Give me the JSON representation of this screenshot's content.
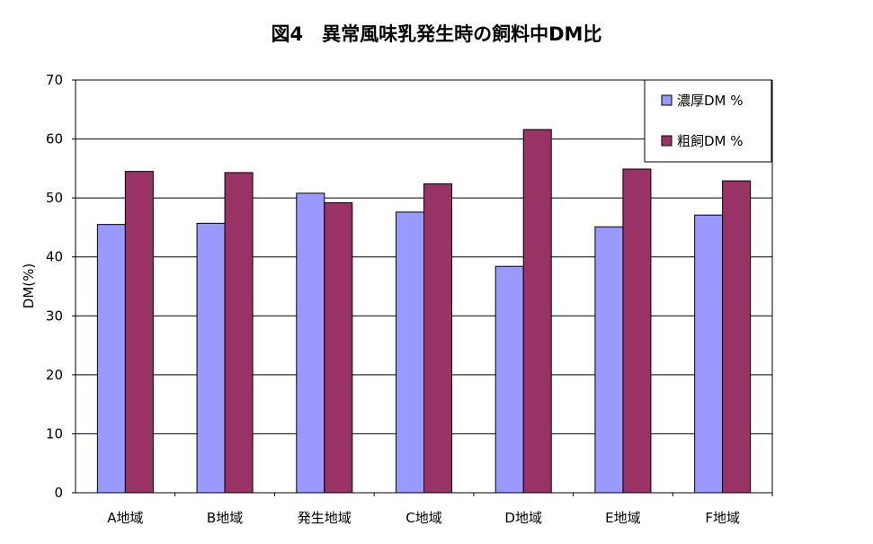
{
  "chart_data": {
    "type": "bar",
    "title": "図4　異常風味乳発生時の飼料中DM比",
    "ylabel": "DM(%)",
    "xlabel": "",
    "ylim": [
      0,
      70
    ],
    "yticks": [
      0,
      10,
      20,
      30,
      40,
      50,
      60,
      70
    ],
    "grid": true,
    "legend_position": "top-right",
    "categories": [
      "A地域",
      "B地域",
      "発生地域",
      "C地域",
      "D地域",
      "E地域",
      "F地域"
    ],
    "series": [
      {
        "name": "濃厚DM %",
        "color": "#9999ff",
        "values": [
          45.5,
          45.7,
          50.8,
          47.6,
          38.4,
          45.1,
          47.1
        ]
      },
      {
        "name": "粗飼DM %",
        "color": "#993366",
        "values": [
          54.5,
          54.3,
          49.2,
          52.4,
          61.6,
          54.9,
          52.9
        ]
      }
    ]
  }
}
